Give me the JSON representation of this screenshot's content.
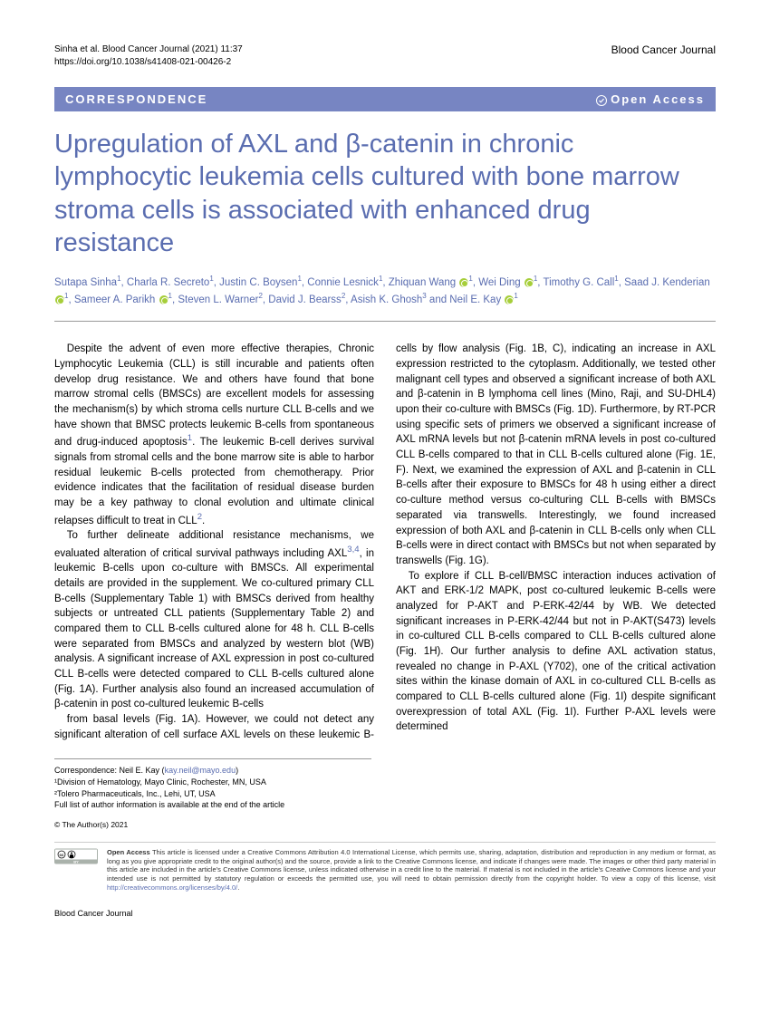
{
  "header": {
    "citation": "Sinha et al. Blood Cancer Journal (2021) 11:37",
    "doi": "https://doi.org/10.1038/s41408-021-00426-2",
    "journal": "Blood Cancer Journal"
  },
  "banner": {
    "left": "CORRESPONDENCE",
    "right": "Open Access"
  },
  "title": "Upregulation of AXL and β-catenin in chronic lymphocytic leukemia cells cultured with bone marrow stroma cells is associated with enhanced drug resistance",
  "authors_html": "Sutapa Sinha<sup>1</sup>, Charla R. Secreto<sup>1</sup>, Justin C. Boysen<sup>1</sup>, Connie Lesnick<sup>1</sup>, Zhiquan Wang <span class='orcid' data-name='orcid-icon' data-interactable='false'></span><sup>1</sup>, Wei Ding <span class='orcid' data-name='orcid-icon' data-interactable='false'></span><sup>1</sup>, Timothy G. Call<sup>1</sup>, Saad J. Kenderian <span class='orcid' data-name='orcid-icon' data-interactable='false'></span><sup>1</sup>, Sameer A. Parikh <span class='orcid' data-name='orcid-icon' data-interactable='false'></span><sup>1</sup>, Steven L. Warner<sup>2</sup>, David J. Bearss<sup>2</sup>, Asish K. Ghosh<sup>3</sup> and Neil E. Kay <span class='orcid' data-name='orcid-icon' data-interactable='false'></span><sup>1</sup>",
  "body": {
    "p1": "Despite the advent of even more effective therapies, Chronic Lymphocytic Leukemia (CLL) is still incurable and patients often develop drug resistance. We and others have found that bone marrow stromal cells (BMSCs) are excellent models for assessing the mechanism(s) by which stroma cells nurture CLL B-cells and we have shown that BMSC protects leukemic B-cells from spontaneous and drug-induced apoptosis",
    "p1b": ". The leukemic B-cell derives survival signals from stromal cells and the bone marrow site is able to harbor residual leukemic B-cells protected from chemotherapy. Prior evidence indicates that the facilitation of residual disease burden may be a key pathway to clonal evolution and ultimate clinical relapses difficult to treat in CLL",
    "p2a": "To further delineate additional resistance mechanisms, we evaluated alteration of critical survival pathways including AXL",
    "p2b": ", in leukemic B-cells upon co-culture with BMSCs. All experimental details are provided in the supplement. We co-cultured primary CLL B-cells (Supplementary Table 1) with BMSCs derived from healthy subjects or untreated CLL patients (Supplementary Table 2) and compared them to CLL B-cells cultured alone for 48 h. CLL B-cells were separated from BMSCs and analyzed by western blot (WB) analysis. A significant increase of AXL expression in post co-cultured CLL B-cells were detected compared to CLL B-cells cultured alone (Fig. 1A). Further analysis also found an increased accumulation of β-catenin in post co-cultured leukemic B-cells",
    "p3": "from basal levels (Fig. 1A). However, we could not detect any significant alteration of cell surface AXL levels on these leukemic B-cells by flow analysis (Fig. 1B, C), indicating an increase in AXL expression restricted to the cytoplasm. Additionally, we tested other malignant cell types and observed a significant increase of both AXL and β-catenin in B lymphoma cell lines (Mino, Raji, and SU-DHL4) upon their co-culture with BMSCs (Fig. 1D). Furthermore, by RT-PCR using specific sets of primers we observed a significant increase of AXL mRNA levels but not β-catenin mRNA levels in post co-cultured CLL B-cells compared to that in CLL B-cells cultured alone (Fig. 1E, F). Next, we examined the expression of AXL and β-catenin in CLL B-cells after their exposure to BMSCs for 48 h using either a direct co-culture method versus co-culturing CLL B-cells with BMSCs separated via transwells. Interestingly, we found increased expression of both AXL and β-catenin in CLL B-cells only when CLL B-cells were in direct contact with BMSCs but not when separated by transwells (Fig. 1G).",
    "p4": "To explore if CLL B-cell/BMSC interaction induces activation of AKT and ERK-1/2 MAPK, post co-cultured leukemic B-cells were analyzed for P-AKT and P-ERK-42/44 by WB. We detected significant increases in P-ERK-42/44 but not in P-AKT(S473) levels in co-cultured CLL B-cells compared to CLL B-cells cultured alone (Fig. 1H). Our further analysis to define AXL activation status, revealed no change in P-AXL (Y702), one of the critical activation sites within the kinase domain of AXL in co-cultured CLL B-cells as compared to CLL B-cells cultured alone (Fig. 1I) despite significant overexpression of total AXL (Fig. 1I). Further P-AXL levels were determined"
  },
  "refs": {
    "r1": "1",
    "r2": "2",
    "r34": "3,4"
  },
  "correspondence": {
    "line1": "Correspondence: Neil E. Kay (",
    "email": "kay.neil@mayo.edu",
    "line1b": ")",
    "aff1": "¹Division of Hematology, Mayo Clinic, Rochester, MN, USA",
    "aff2": "²Tolero Pharmaceuticals, Inc., Lehi, UT, USA",
    "note": "Full list of author information is available at the end of the article"
  },
  "license": {
    "copyright": "© The Author(s) 2021",
    "bold": "Open Access",
    "text": " This article is licensed under a Creative Commons Attribution 4.0 International License, which permits use, sharing, adaptation, distribution and reproduction in any medium or format, as long as you give appropriate credit to the original author(s) and the source, provide a link to the Creative Commons license, and indicate if changes were made. The images or other third party material in this article are included in the article's Creative Commons license, unless indicated otherwise in a credit line to the material. If material is not included in the article's Creative Commons license and your intended use is not permitted by statutory regulation or exceeds the permitted use, you will need to obtain permission directly from the copyright holder. To view a copy of this license, visit ",
    "url": "http://creativecommons.org/licenses/by/4.0/"
  },
  "footer": "Blood Cancer Journal",
  "colors": {
    "banner_bg": "#7785c2",
    "accent": "#5a6db0",
    "orcid": "#a6ce39"
  }
}
